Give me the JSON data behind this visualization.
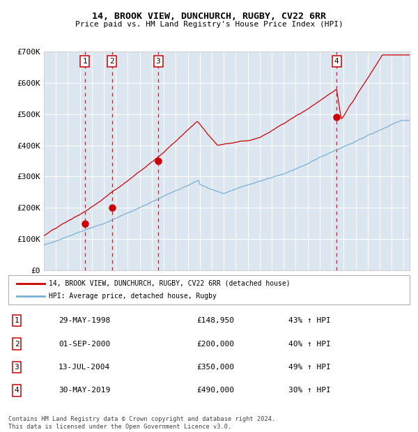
{
  "title": "14, BROOK VIEW, DUNCHURCH, RUGBY, CV22 6RR",
  "subtitle": "Price paid vs. HM Land Registry's House Price Index (HPI)",
  "background_color": "#dce6f1",
  "plot_bg_color": "#dce6f1",
  "transactions": [
    {
      "label": "1",
      "date": "29-MAY-1998",
      "price": 148950,
      "year": 1998.41
    },
    {
      "label": "2",
      "date": "01-SEP-2000",
      "price": 200000,
      "year": 2000.67
    },
    {
      "label": "3",
      "date": "13-JUL-2004",
      "price": 350000,
      "year": 2004.53
    },
    {
      "label": "4",
      "date": "30-MAY-2019",
      "price": 490000,
      "year": 2019.41
    }
  ],
  "legend_line1": "14, BROOK VIEW, DUNCHURCH, RUGBY, CV22 6RR (detached house)",
  "legend_line2": "HPI: Average price, detached house, Rugby",
  "footer": "Contains HM Land Registry data © Crown copyright and database right 2024.\nThis data is licensed under the Open Government Licence v3.0.",
  "table_rows": [
    [
      "1",
      "29-MAY-1998",
      "£148,950",
      "43% ↑ HPI"
    ],
    [
      "2",
      "01-SEP-2000",
      "£200,000",
      "40% ↑ HPI"
    ],
    [
      "3",
      "13-JUL-2004",
      "£350,000",
      "49% ↑ HPI"
    ],
    [
      "4",
      "30-MAY-2019",
      "£490,000",
      "30% ↑ HPI"
    ]
  ],
  "red_line_color": "#cc0000",
  "blue_line_color": "#7bafd4",
  "dot_color": "#cc0000",
  "vline_color": "#cc0000",
  "ylim": [
    0,
    700000
  ],
  "xlim_start": 1995.0,
  "xlim_end": 2025.5,
  "yticks": [
    0,
    100000,
    200000,
    300000,
    400000,
    500000,
    600000,
    700000
  ],
  "ytick_labels": [
    "£0",
    "£100K",
    "£200K",
    "£300K",
    "£400K",
    "£500K",
    "£600K",
    "£700K"
  ]
}
